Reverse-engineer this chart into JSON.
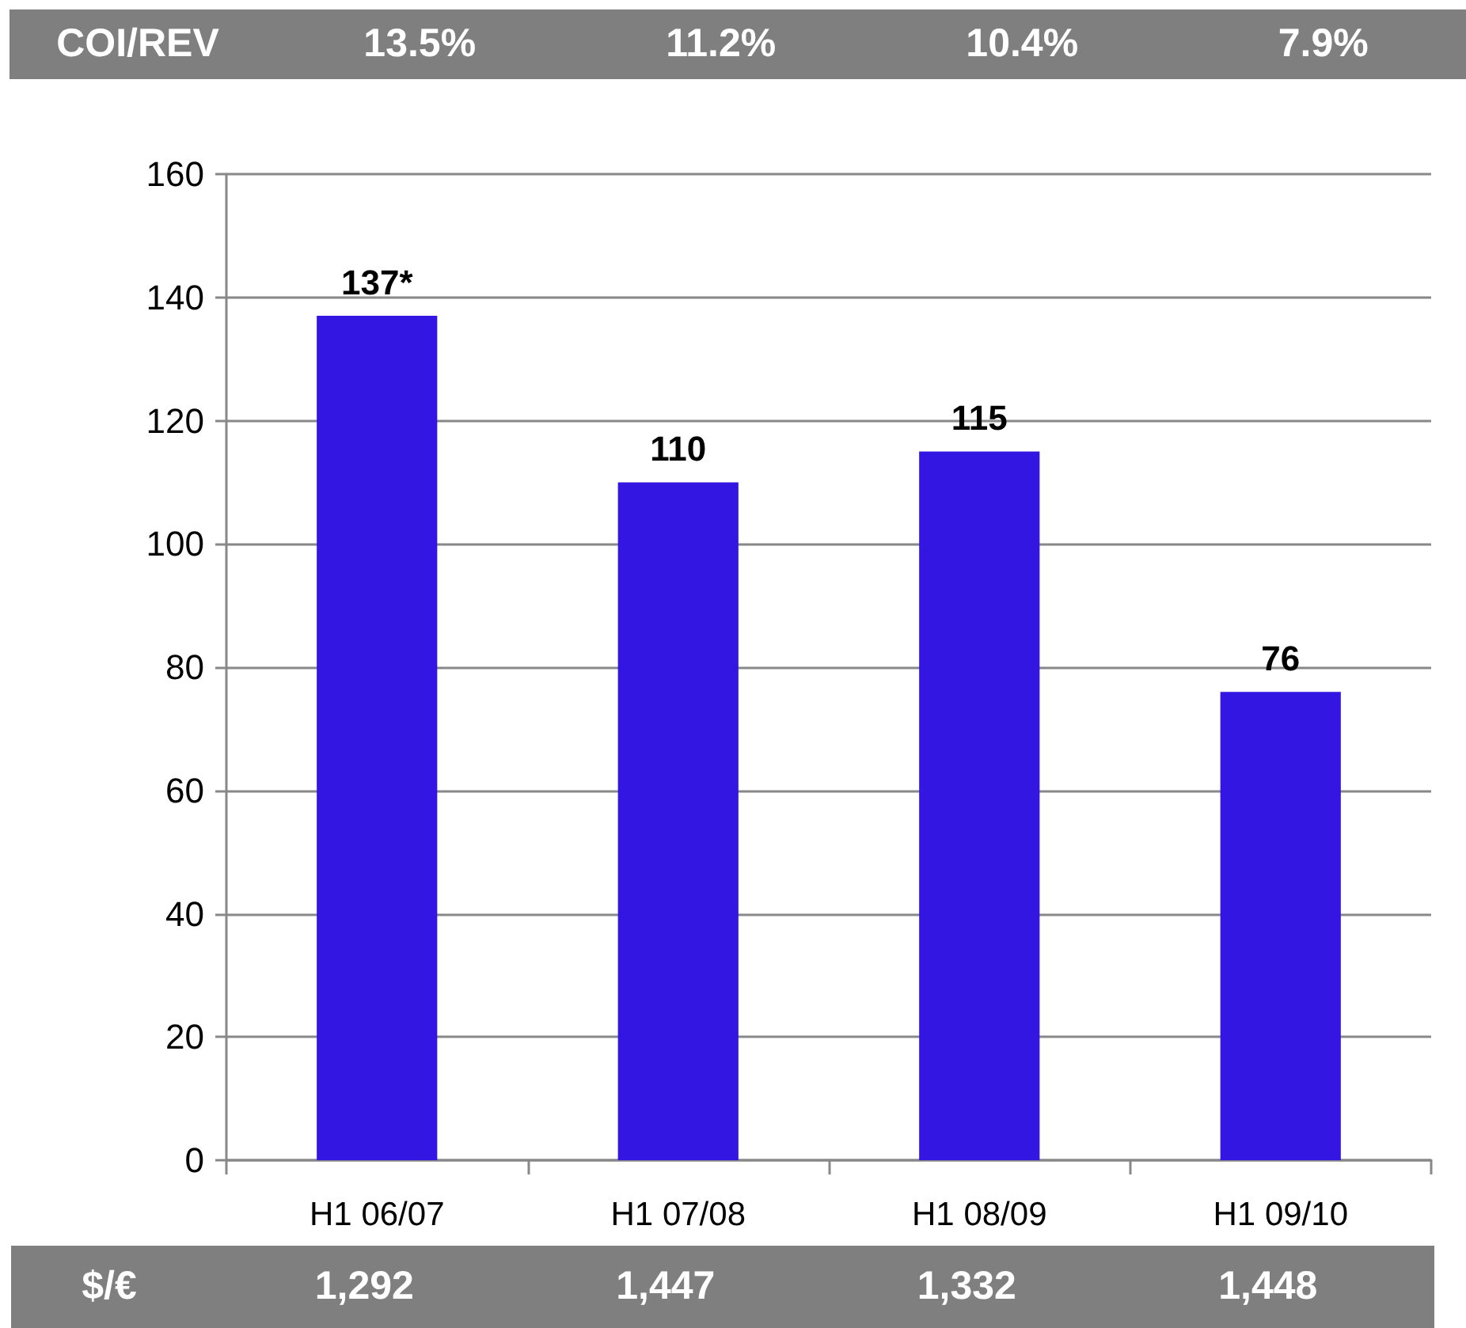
{
  "chart_data": {
    "type": "bar",
    "categories": [
      "H1 06/07",
      "H1 07/08",
      "H1 08/09",
      "H1 09/10"
    ],
    "values": [
      137,
      110,
      115,
      76
    ],
    "color": "#3416e3",
    "value_labels": [
      "137*",
      "110",
      "115",
      "76"
    ],
    "ylim": [
      0,
      160
    ],
    "yticks": [
      0,
      20,
      40,
      60,
      80,
      100,
      120,
      140,
      160
    ],
    "grid": "y",
    "annotations": [
      "COI/REV",
      "13.5%",
      "11.2%",
      "10.4%",
      "7.9%",
      "$/€",
      "1,292",
      "1,447",
      "1,332",
      "1,448"
    ]
  }
}
